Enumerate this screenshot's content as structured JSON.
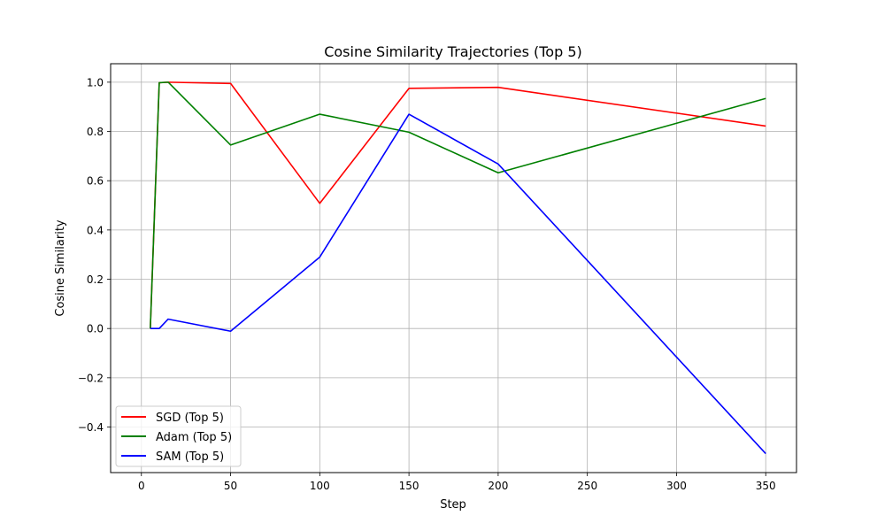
{
  "chart_data": {
    "type": "line",
    "title": "Cosine Similarity Trajectories (Top 5)",
    "xlabel": "Step",
    "ylabel": "Cosine Similarity",
    "xlim": [
      -17.25,
      367.25
    ],
    "ylim": [
      -0.585,
      1.075
    ],
    "xticks": [
      0,
      50,
      100,
      150,
      200,
      250,
      300,
      350
    ],
    "xtick_labels": [
      "0",
      "50",
      "100",
      "150",
      "200",
      "250",
      "300",
      "350"
    ],
    "yticks": [
      -0.4,
      -0.2,
      0.0,
      0.2,
      0.4,
      0.6,
      0.8,
      1.0
    ],
    "ytick_labels": [
      "−0.4",
      "−0.2",
      "0.0",
      "0.2",
      "0.4",
      "0.6",
      "0.8",
      "1.0"
    ],
    "grid": true,
    "legend_position": "bottom-left",
    "series": [
      {
        "name": "SGD (Top 5)",
        "color": "#ff0000",
        "x": [
          5,
          10,
          15,
          50,
          100,
          150,
          200,
          350
        ],
        "y": [
          0.0,
          0.998,
          1.0,
          0.995,
          0.508,
          0.975,
          0.979,
          0.822
        ]
      },
      {
        "name": "Adam (Top 5)",
        "color": "#008000",
        "x": [
          5,
          10,
          15,
          50,
          100,
          150,
          200,
          350
        ],
        "y": [
          0.0,
          0.998,
          1.0,
          0.745,
          0.87,
          0.797,
          0.632,
          0.934
        ]
      },
      {
        "name": "SAM (Top 5)",
        "color": "#0000ff",
        "x": [
          5,
          10,
          15,
          50,
          100,
          150,
          200,
          350
        ],
        "y": [
          0.0,
          0.0,
          0.038,
          -0.011,
          0.29,
          0.87,
          0.668,
          -0.508
        ]
      }
    ]
  }
}
